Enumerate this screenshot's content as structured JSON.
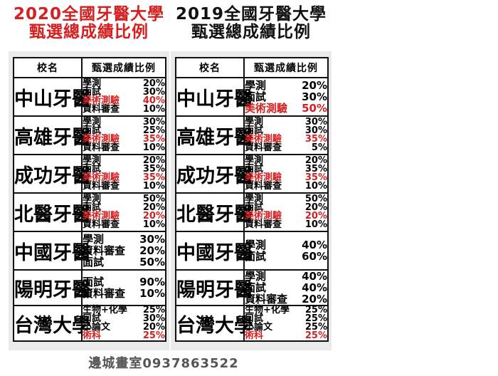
{
  "titles": {
    "y2020": {
      "line1": "2020全國牙醫大學",
      "line2": "甄選總成績比例",
      "color": "#d42020"
    },
    "y2019": {
      "line1": "2019全國牙醫大學",
      "line2": "甄選總成績比例",
      "color": "#111111"
    }
  },
  "headers": {
    "school": "校名",
    "ratio": "甄選成績比例"
  },
  "y2020": {
    "rows": [
      {
        "school": "中山牙醫",
        "items": [
          {
            "label": "學測",
            "value": "20%",
            "red": false
          },
          {
            "label": "面試",
            "value": "30%",
            "red": false
          },
          {
            "label": "美術測驗",
            "value": "40%",
            "red": true
          },
          {
            "label": "資料審查",
            "value": "10%",
            "red": false
          }
        ]
      },
      {
        "school": "高雄牙醫",
        "items": [
          {
            "label": "學測",
            "value": "30%",
            "red": false
          },
          {
            "label": "面試",
            "value": "25%",
            "red": false
          },
          {
            "label": "美術測驗",
            "value": "35%",
            "red": true
          },
          {
            "label": "資料審查",
            "value": "10%",
            "red": false
          }
        ]
      },
      {
        "school": "成功牙醫",
        "items": [
          {
            "label": "學測",
            "value": "20%",
            "red": false
          },
          {
            "label": "面試",
            "value": "35%",
            "red": false
          },
          {
            "label": "美術測驗",
            "value": "35%",
            "red": true
          },
          {
            "label": "資料審查",
            "value": "10%",
            "red": false
          }
        ]
      },
      {
        "school": "北醫牙醫",
        "items": [
          {
            "label": "學測",
            "value": "50%",
            "red": false
          },
          {
            "label": "面試",
            "value": "20%",
            "red": false
          },
          {
            "label": "美術測驗",
            "value": "20%",
            "red": true
          },
          {
            "label": "資料審查",
            "value": "10%",
            "red": false
          }
        ]
      },
      {
        "school": "中國牙醫",
        "items": [
          {
            "label": "學測",
            "value": "30%",
            "red": false
          },
          {
            "label": "資料審查",
            "value": "20%",
            "red": false
          },
          {
            "label": "面試",
            "value": "50%",
            "red": false
          }
        ]
      },
      {
        "school": "陽明牙醫",
        "items": [
          {
            "label": "面試",
            "value": "90%",
            "red": false
          },
          {
            "label": "資料審查",
            "value": "10%",
            "red": false
          }
        ]
      },
      {
        "school": "台灣大學",
        "items": [
          {
            "label": "生物+化學",
            "value": "25%",
            "red": false
          },
          {
            "label": "口試",
            "value": "30%",
            "red": false
          },
          {
            "label": "小論文",
            "value": "20%",
            "red": false
          },
          {
            "label": "術科",
            "value": "25%",
            "red": true
          }
        ]
      }
    ]
  },
  "y2019": {
    "rows": [
      {
        "school": "中山牙醫",
        "items": [
          {
            "label": "學測",
            "value": "20%",
            "red": false
          },
          {
            "label": "面試",
            "value": "30%",
            "red": false
          },
          {
            "label": "美術測驗",
            "value": "50%",
            "red": true
          }
        ]
      },
      {
        "school": "高雄牙醫",
        "items": [
          {
            "label": "學測",
            "value": "30%",
            "red": false
          },
          {
            "label": "面試",
            "value": "30%",
            "red": false
          },
          {
            "label": "美術測驗",
            "value": "35%",
            "red": true
          },
          {
            "label": "資料審查",
            "value": "5%",
            "red": false
          }
        ]
      },
      {
        "school": "成功牙醫",
        "items": [
          {
            "label": "學測",
            "value": "20%",
            "red": false
          },
          {
            "label": "面試",
            "value": "35%",
            "red": false
          },
          {
            "label": "美術測驗",
            "value": "35%",
            "red": true
          },
          {
            "label": "資料審查",
            "value": "10%",
            "red": false
          }
        ]
      },
      {
        "school": "北醫牙醫",
        "items": [
          {
            "label": "學測",
            "value": "50%",
            "red": false
          },
          {
            "label": "面試",
            "value": "20%",
            "red": false
          },
          {
            "label": "美術測驗",
            "value": "20%",
            "red": true
          },
          {
            "label": "資料審查",
            "value": "10%",
            "red": false
          }
        ]
      },
      {
        "school": "中國牙醫",
        "items": [
          {
            "label": "學測",
            "value": "40%",
            "red": false
          },
          {
            "label": "面試",
            "value": "60%",
            "red": false
          }
        ]
      },
      {
        "school": "陽明牙醫",
        "items": [
          {
            "label": "學測",
            "value": "40%",
            "red": false
          },
          {
            "label": "面試",
            "value": "40%",
            "red": false
          },
          {
            "label": "資料審查",
            "value": "20%",
            "red": false
          }
        ]
      },
      {
        "school": "台灣大學",
        "items": [
          {
            "label": "生物+化學",
            "value": "25%",
            "red": false
          },
          {
            "label": "口試",
            "value": "25%",
            "red": false
          },
          {
            "label": "小論文",
            "value": "25%",
            "red": false
          },
          {
            "label": "術科",
            "value": "25%",
            "red": true
          }
        ]
      }
    ]
  },
  "footer": {
    "text": "邊城畫室0937863522"
  }
}
